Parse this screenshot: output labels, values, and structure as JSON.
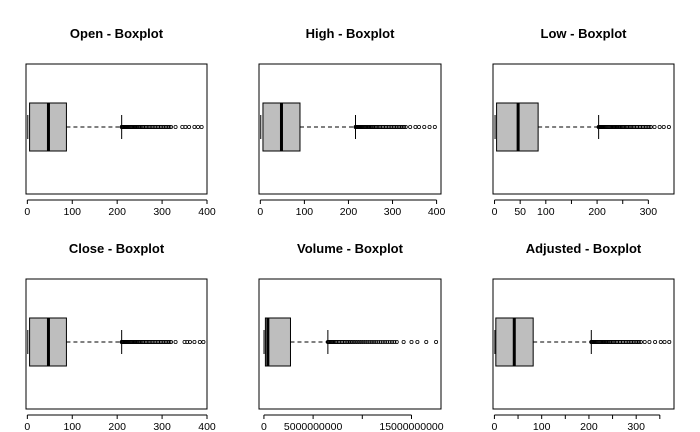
{
  "chart_data": [
    {
      "type": "boxplot",
      "title": "Open - Boxplot",
      "xlim": [
        -3,
        400
      ],
      "ticks": [
        0,
        100,
        200,
        300,
        400
      ],
      "tick_labels": [
        "0",
        "100",
        "200",
        "300",
        "400"
      ],
      "box": {
        "min": 1,
        "q1": 5,
        "median": 47,
        "q3": 87,
        "whisker_high": 210
      },
      "outliers": {
        "from": 210,
        "to": 320,
        "count": 40,
        "extra": [
          330,
          345,
          352,
          360,
          372,
          380,
          388
        ]
      },
      "box_fill": "#bebebe"
    },
    {
      "type": "boxplot",
      "title": "High - Boxplot",
      "xlim": [
        -3,
        410
      ],
      "ticks": [
        0,
        100,
        200,
        300,
        400
      ],
      "tick_labels": [
        "0",
        "100",
        "200",
        "300",
        "400"
      ],
      "box": {
        "min": 1,
        "q1": 6,
        "median": 48,
        "q3": 90,
        "whisker_high": 216
      },
      "outliers": {
        "from": 216,
        "to": 330,
        "count": 40,
        "extra": [
          340,
          352,
          360,
          372,
          384,
          396
        ]
      },
      "box_fill": "#bebebe"
    },
    {
      "type": "boxplot",
      "title": "Low - Boxplot",
      "xlim": [
        -3,
        350
      ],
      "ticks": [
        0,
        50,
        100,
        150,
        200,
        250,
        300
      ],
      "tick_labels": [
        "0",
        "50",
        "100",
        "",
        "200",
        "",
        "300"
      ],
      "box": {
        "min": 1,
        "q1": 4,
        "median": 46,
        "q3": 85,
        "whisker_high": 203
      },
      "outliers": {
        "from": 203,
        "to": 305,
        "count": 45,
        "extra": [
          312,
          322,
          330,
          340
        ]
      },
      "box_fill": "#bebebe"
    },
    {
      "type": "boxplot",
      "title": "Close - Boxplot",
      "xlim": [
        -3,
        400
      ],
      "ticks": [
        0,
        100,
        200,
        300,
        400
      ],
      "tick_labels": [
        "0",
        "100",
        "200",
        "300",
        "400"
      ],
      "box": {
        "min": 1,
        "q1": 5,
        "median": 47,
        "q3": 87,
        "whisker_high": 210
      },
      "outliers": {
        "from": 210,
        "to": 320,
        "count": 40,
        "extra": [
          330,
          350,
          356,
          362,
          372,
          384,
          392
        ]
      },
      "box_fill": "#bebebe"
    },
    {
      "type": "boxplot",
      "title": "Volume - Boxplot",
      "xlim": [
        -500000000,
        18000000000
      ],
      "ticks": [
        0,
        5000000000,
        10000000000,
        15000000000
      ],
      "tick_labels": [
        "0",
        "5000000000",
        "",
        "15000000000"
      ],
      "box": {
        "min": 10000000,
        "q1": 150000000,
        "median": 400000000,
        "q3": 2700000000,
        "whisker_high": 6500000000
      },
      "outliers": {
        "from": 6500000000,
        "to": 13500000000,
        "count": 40,
        "extra": [
          14200000000,
          15000000000,
          15600000000,
          16500000000,
          17500000000
        ]
      },
      "box_fill": "#bebebe"
    },
    {
      "type": "boxplot",
      "title": "Adjusted - Boxplot",
      "xlim": [
        -3,
        380
      ],
      "ticks": [
        0,
        50,
        100,
        150,
        200,
        250,
        300,
        350
      ],
      "tick_labels": [
        "0",
        "",
        "100",
        "",
        "200",
        "",
        "300",
        ""
      ],
      "box": {
        "min": 1,
        "q1": 3,
        "median": 42,
        "q3": 82,
        "whisker_high": 205
      },
      "outliers": {
        "from": 205,
        "to": 310,
        "count": 40,
        "extra": [
          318,
          328,
          340,
          352,
          360,
          370
        ]
      },
      "box_fill": "#bebebe"
    }
  ]
}
